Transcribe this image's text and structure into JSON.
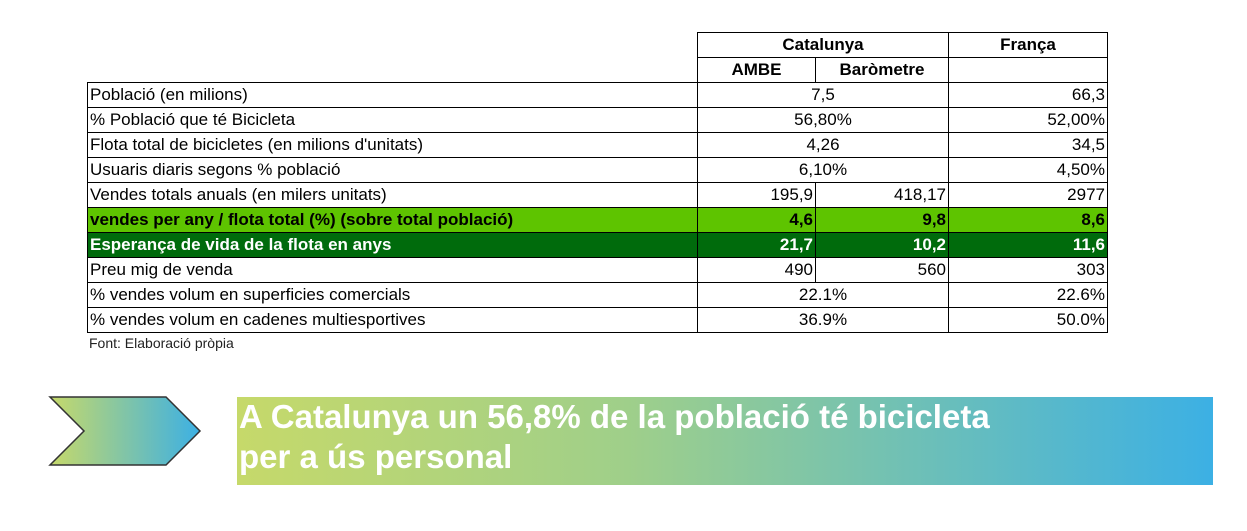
{
  "table": {
    "header": {
      "catalunya": "Catalunya",
      "franca": "França",
      "sub": [
        "AMBE",
        "Baròmetre"
      ]
    },
    "rows": [
      {
        "label": "Població (en milions)",
        "catalunya": [
          "7,5"
        ],
        "franca": "66,3"
      },
      {
        "label": "% Població que té Bicicleta",
        "catalunya": [
          "56,80%"
        ],
        "franca": "52,00%"
      },
      {
        "label": "Flota total de bicicletes (en milions d'unitats)",
        "catalunya": [
          "4,26"
        ],
        "franca": "34,5"
      },
      {
        "label": "Usuaris diaris segons % població",
        "catalunya": [
          "6,10%"
        ],
        "franca": "4,50%"
      },
      {
        "label": "Vendes totals anuals (en milers unitats)",
        "catalunya": [
          "195,9",
          "418,17"
        ],
        "franca": "2977"
      },
      {
        "label": "vendes per any / flota total (%) (sobre total població)",
        "catalunya": [
          "4,6",
          "9,8"
        ],
        "franca": "8,6"
      },
      {
        "label": "Esperança de vida de la flota en anys",
        "catalunya": [
          "21,7",
          "10,2"
        ],
        "franca": "11,6"
      },
      {
        "label": "Preu mig de venda",
        "catalunya": [
          "490",
          "560"
        ],
        "franca": "303"
      },
      {
        "label": "% vendes volum en superficies comercials",
        "catalunya": [
          "22.1%"
        ],
        "franca": "22.6%"
      },
      {
        "label": "% vendes volum en cadenes multiesportives",
        "catalunya": [
          "36.9%"
        ],
        "franca": "50.0%"
      }
    ],
    "source": "Font: Elaboració pròpia"
  },
  "banner": {
    "lines": [
      "A Catalunya un 56,8% de la població té bicicleta",
      "per a ús personal"
    ]
  }
}
